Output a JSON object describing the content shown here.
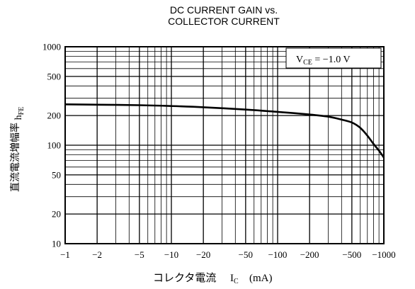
{
  "chart_data": {
    "type": "line",
    "title": [
      "DC CURRENT GAIN vs.",
      "COLLECTOR CURRENT"
    ],
    "xlabel": {
      "text": "コレクタ電流",
      "symbol": "I",
      "symbol_sub": "C",
      "unit": "(mA)"
    },
    "ylabel": {
      "text": "直流電流増幅率",
      "symbol": "h",
      "symbol_sub": "FE"
    },
    "x_scale": "log",
    "y_scale": "log",
    "xlim": [
      -1,
      -1000
    ],
    "ylim": [
      10,
      1000
    ],
    "x_ticks": [
      {
        "value": -1,
        "label": "−1"
      },
      {
        "value": -2,
        "label": "−2"
      },
      {
        "value": -5,
        "label": "−5"
      },
      {
        "value": -10,
        "label": "−10"
      },
      {
        "value": -20,
        "label": "−20"
      },
      {
        "value": -50,
        "label": "−50"
      },
      {
        "value": -100,
        "label": "−100"
      },
      {
        "value": -200,
        "label": "−200"
      },
      {
        "value": -500,
        "label": "−500"
      },
      {
        "value": -1000,
        "label": "−1000"
      }
    ],
    "y_ticks": [
      {
        "value": 1000,
        "label": "1000"
      },
      {
        "value": 500,
        "label": "500"
      },
      {
        "value": 200,
        "label": "200"
      },
      {
        "value": 100,
        "label": "100"
      },
      {
        "value": 50,
        "label": "50"
      },
      {
        "value": 20,
        "label": "20"
      },
      {
        "value": 10,
        "label": "10"
      }
    ],
    "grid": true,
    "annotation": {
      "prefix": "V",
      "sub": "CE",
      "text": " = −1.0 V",
      "placement": "top-right"
    },
    "series": [
      {
        "x": [
          -1,
          -2,
          -5,
          -10,
          -20,
          -50,
          -100,
          -200,
          -300,
          -400,
          -500,
          -600,
          -700,
          -800,
          -900,
          -1000
        ],
        "y": [
          260,
          258,
          255,
          250,
          243,
          230,
          218,
          205,
          195,
          182,
          170,
          150,
          125,
          103,
          88,
          75
        ]
      }
    ]
  }
}
